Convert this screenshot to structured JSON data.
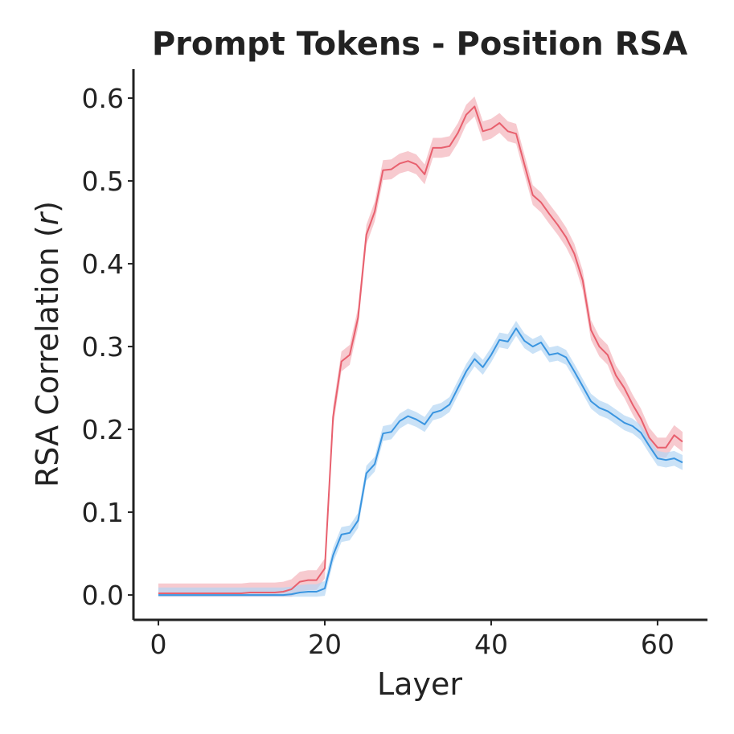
{
  "chart_data": {
    "type": "line",
    "title": "Prompt Tokens - Position RSA",
    "xlabel": "Layer",
    "ylabel_prefix": "RSA Correlation (",
    "ylabel_var": "r",
    "ylabel_suffix": ")",
    "xlim": [
      -3,
      66
    ],
    "ylim": [
      -0.03,
      0.635
    ],
    "xticks": [
      0,
      20,
      40,
      60
    ],
    "yticks": [
      0.0,
      0.1,
      0.2,
      0.3,
      0.4,
      0.5,
      0.6
    ],
    "ytick_labels": [
      "0.0",
      "0.1",
      "0.2",
      "0.3",
      "0.4",
      "0.5",
      "0.6"
    ],
    "grid": false,
    "x": [
      0,
      1,
      2,
      3,
      4,
      5,
      6,
      7,
      8,
      9,
      10,
      11,
      12,
      13,
      14,
      15,
      16,
      17,
      18,
      19,
      20,
      21,
      22,
      23,
      24,
      25,
      26,
      27,
      28,
      29,
      30,
      31,
      32,
      33,
      34,
      35,
      36,
      37,
      38,
      39,
      40,
      41,
      42,
      43,
      44,
      45,
      46,
      47,
      48,
      49,
      50,
      51,
      52,
      53,
      54,
      55,
      56,
      57,
      58,
      59,
      60,
      61,
      62,
      63
    ],
    "series": [
      {
        "color": "#e8606e",
        "band_color": "#f4b4ba",
        "band": 0.012,
        "values": [
          0.002,
          0.002,
          0.002,
          0.002,
          0.002,
          0.002,
          0.002,
          0.002,
          0.002,
          0.002,
          0.002,
          0.003,
          0.003,
          0.003,
          0.003,
          0.004,
          0.007,
          0.016,
          0.018,
          0.018,
          0.032,
          0.215,
          0.282,
          0.29,
          0.335,
          0.435,
          0.463,
          0.513,
          0.514,
          0.521,
          0.524,
          0.52,
          0.508,
          0.54,
          0.54,
          0.542,
          0.558,
          0.58,
          0.59,
          0.56,
          0.563,
          0.57,
          0.56,
          0.557,
          0.52,
          0.483,
          0.474,
          0.46,
          0.447,
          0.432,
          0.412,
          0.38,
          0.32,
          0.3,
          0.29,
          0.265,
          0.25,
          0.23,
          0.213,
          0.19,
          0.178,
          0.178,
          0.193,
          0.185
        ]
      },
      {
        "color": "#3a95e0",
        "band_color": "#b4d6f4",
        "band": 0.009,
        "values": [
          0.0,
          0.0,
          0.0,
          0.0,
          0.0,
          0.0,
          0.0,
          0.0,
          0.0,
          0.0,
          0.0,
          0.0,
          0.0,
          0.0,
          0.0,
          0.0,
          0.001,
          0.003,
          0.004,
          0.004,
          0.008,
          0.048,
          0.073,
          0.075,
          0.09,
          0.147,
          0.158,
          0.195,
          0.197,
          0.21,
          0.216,
          0.212,
          0.206,
          0.22,
          0.223,
          0.23,
          0.25,
          0.27,
          0.285,
          0.275,
          0.29,
          0.308,
          0.306,
          0.322,
          0.307,
          0.3,
          0.305,
          0.29,
          0.292,
          0.287,
          0.27,
          0.252,
          0.234,
          0.226,
          0.222,
          0.215,
          0.208,
          0.204,
          0.196,
          0.18,
          0.165,
          0.163,
          0.165,
          0.16
        ]
      }
    ]
  }
}
